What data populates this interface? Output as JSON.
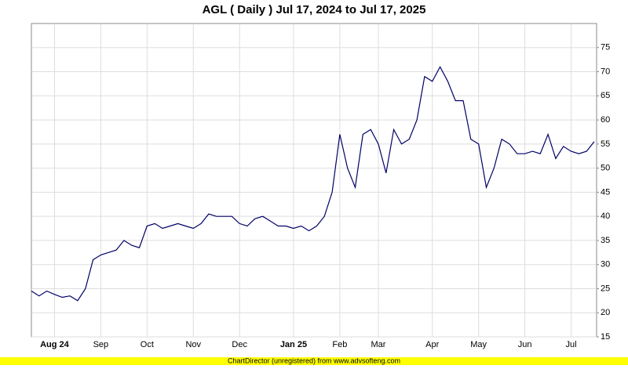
{
  "chart_data": {
    "type": "line",
    "title": "AGL ( Daily ) Jul 17, 2024 to Jul 17, 2025",
    "footer": "ChartDirector (unregistered) from www.advsofteng.com",
    "categories": [
      null,
      null,
      null,
      "Aug 24",
      null,
      null,
      null,
      null,
      null,
      "Sep",
      null,
      null,
      null,
      null,
      null,
      "Oct",
      null,
      null,
      null,
      null,
      null,
      "Nov",
      null,
      null,
      null,
      null,
      null,
      "Dec",
      null,
      null,
      null,
      null,
      null,
      null,
      "Jan 25",
      null,
      null,
      null,
      null,
      null,
      "Feb",
      null,
      null,
      null,
      null,
      "Mar",
      null,
      null,
      null,
      null,
      null,
      null,
      "Apr",
      null,
      null,
      null,
      null,
      null,
      "May",
      null,
      null,
      null,
      null,
      null,
      "Jun",
      null,
      null,
      null,
      null,
      null,
      "Jul",
      null,
      null,
      null
    ],
    "series": [
      {
        "name": "AGL",
        "color": "#000066",
        "values": [
          24.5,
          23.5,
          24.5,
          23.8,
          23.2,
          23.5,
          22.5,
          25,
          31,
          32,
          32.5,
          33,
          35,
          34,
          33.5,
          38,
          38.5,
          37.5,
          38,
          38.5,
          38,
          37.5,
          38.5,
          40.5,
          40,
          40,
          40,
          38.5,
          38,
          39.5,
          40,
          39,
          38,
          38,
          37.5,
          38,
          37,
          38,
          40,
          45,
          57,
          50,
          46,
          57,
          58,
          55,
          49,
          58,
          55,
          56,
          60,
          69,
          68,
          71,
          68,
          64,
          64,
          56,
          55,
          46,
          50,
          56,
          55,
          53,
          53,
          53.5,
          53,
          57,
          52,
          54.5,
          53.5,
          53,
          53.5,
          55.5
        ]
      }
    ],
    "ylim": [
      15,
      80
    ],
    "yticks": [
      15,
      20,
      25,
      30,
      35,
      40,
      45,
      50,
      55,
      60,
      65,
      70,
      75
    ],
    "grid": true
  }
}
